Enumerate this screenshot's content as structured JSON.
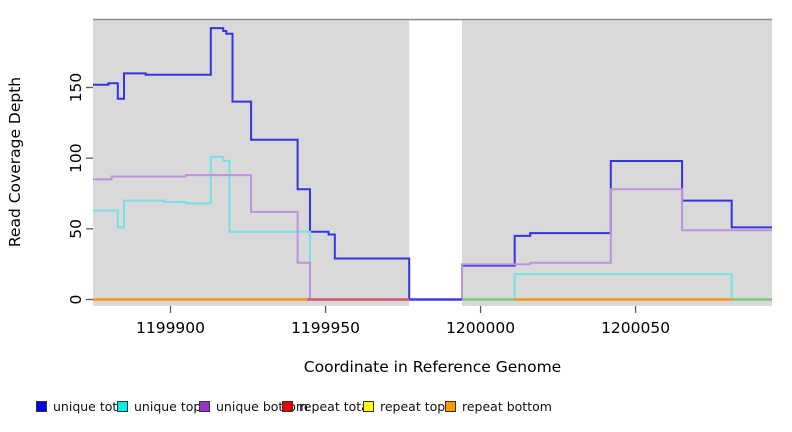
{
  "chart": {
    "x_axis_label": "Coordinate in Reference Genome",
    "y_axis_label": "Read Coverage Depth"
  },
  "chart_data": {
    "type": "line",
    "subtype": "step-coverage-plot",
    "title": "",
    "xlabel": "Coordinate in Reference Genome",
    "ylabel": "Read Coverage Depth",
    "xlim": [
      1199875,
      1200094
    ],
    "ylim": [
      0,
      198
    ],
    "panel_bg": "#d9d9d9",
    "no_data_region": {
      "from": 1199977,
      "to": 1199994,
      "color": "#ffffff"
    },
    "x_ticks": [
      {
        "value": 1199900,
        "label": "1199900"
      },
      {
        "value": 1199950,
        "label": "1199950"
      },
      {
        "value": 1200000,
        "label": "1200000"
      },
      {
        "value": 1200050,
        "label": "1200050"
      }
    ],
    "y_ticks": [
      {
        "value": 0,
        "label": "0"
      },
      {
        "value": 50,
        "label": "50"
      },
      {
        "value": 100,
        "label": "100"
      },
      {
        "value": 150,
        "label": "150"
      }
    ],
    "grid": false,
    "legend_position": "bottom",
    "series": [
      {
        "name": "unique total",
        "color": "#3434e4",
        "steps": [
          [
            1199875,
            152
          ],
          [
            1199880,
            153
          ],
          [
            1199883,
            142
          ],
          [
            1199885,
            160
          ],
          [
            1199892,
            159
          ],
          [
            1199913,
            192
          ],
          [
            1199917,
            190
          ],
          [
            1199918,
            188
          ],
          [
            1199920,
            140
          ],
          [
            1199926,
            113
          ],
          [
            1199941,
            78
          ],
          [
            1199945,
            48
          ],
          [
            1199951,
            46
          ],
          [
            1199953,
            29
          ],
          [
            1199977,
            0
          ],
          [
            1199994,
            24
          ],
          [
            1200011,
            45
          ],
          [
            1200016,
            47
          ],
          [
            1200042,
            98
          ],
          [
            1200065,
            70
          ],
          [
            1200081,
            51
          ],
          [
            1200094,
            51
          ]
        ]
      },
      {
        "name": "unique top",
        "color": "#76e0e6",
        "steps": [
          [
            1199875,
            63
          ],
          [
            1199883,
            51
          ],
          [
            1199885,
            70
          ],
          [
            1199898,
            69
          ],
          [
            1199905,
            68
          ],
          [
            1199913,
            101
          ],
          [
            1199917,
            98
          ],
          [
            1199919,
            48
          ],
          [
            1199945,
            0
          ],
          [
            1200011,
            18
          ],
          [
            1200081,
            0
          ],
          [
            1200094,
            0
          ]
        ]
      },
      {
        "name": "unique bottom",
        "color": "#bd93de",
        "steps": [
          [
            1199875,
            85
          ],
          [
            1199881,
            87
          ],
          [
            1199905,
            88
          ],
          [
            1199926,
            62
          ],
          [
            1199941,
            26
          ],
          [
            1199945,
            0
          ],
          [
            1199994,
            25
          ],
          [
            1200016,
            26
          ],
          [
            1200042,
            78
          ],
          [
            1200065,
            49
          ],
          [
            1200094,
            49
          ]
        ]
      },
      {
        "name": "repeat total",
        "color": "#d05570",
        "steps": [
          [
            1199875,
            0
          ],
          [
            1200094,
            0
          ]
        ]
      },
      {
        "name": "repeat top",
        "color": "#e8e87a",
        "steps": [
          [
            1199875,
            0
          ],
          [
            1200094,
            0
          ]
        ]
      },
      {
        "name": "repeat bottom",
        "color": "#ff9414",
        "steps": [
          [
            1199875,
            0
          ],
          [
            1200094,
            0
          ]
        ]
      }
    ],
    "baseline_segments": [
      {
        "from": 1199875,
        "to": 1199944,
        "color": "#ff9414"
      },
      {
        "from": 1199944,
        "to": 1199977,
        "color": "#d05570"
      },
      {
        "from": 1199977,
        "to": 1199994,
        "color": "#3c3cf0"
      },
      {
        "from": 1199994,
        "to": 1200011,
        "color": "#7cc87f"
      },
      {
        "from": 1200011,
        "to": 1200081,
        "color": "#ff9414"
      },
      {
        "from": 1200081,
        "to": 1200094,
        "color": "#7cc87f"
      }
    ]
  },
  "legend": {
    "items": [
      {
        "label": "unique total",
        "color": "#0000ee"
      },
      {
        "label": "unique top",
        "color": "#00eeee"
      },
      {
        "label": "unique bottom",
        "color": "#9932cc"
      },
      {
        "label": "repeat total",
        "color": "#ee0000"
      },
      {
        "label": "repeat top",
        "color": "#ffff00"
      },
      {
        "label": "repeat bottom",
        "color": "#ff9900"
      }
    ]
  }
}
